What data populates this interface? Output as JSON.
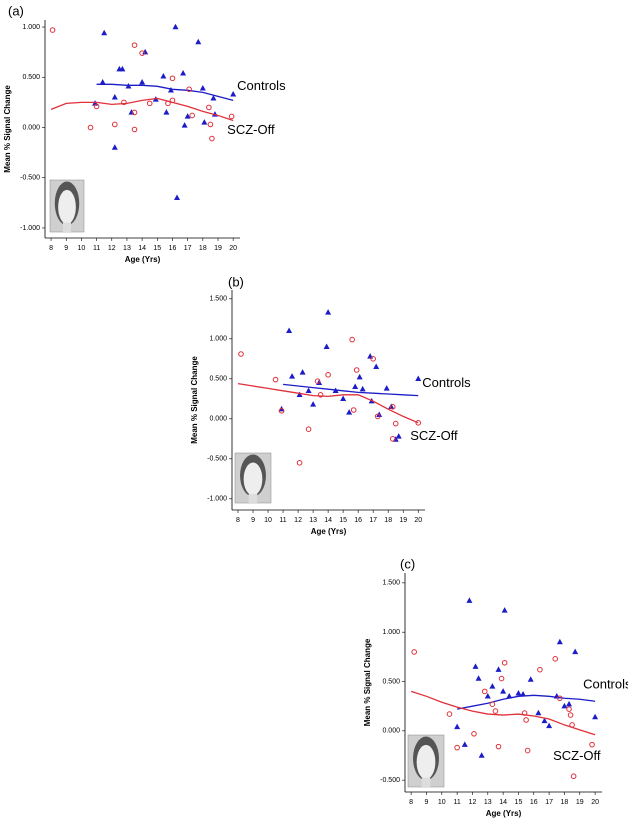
{
  "chart_data": [
    {
      "type": "scatter",
      "label": "(a)",
      "xlabel": "Age (Yrs)",
      "ylabel": "Mean % Signal Change",
      "xlim": [
        7.6,
        20.45
      ],
      "ylim": [
        -1.1,
        1.07
      ],
      "xticks": [
        8,
        9,
        10,
        11,
        12,
        13,
        14,
        15,
        16,
        17,
        18,
        19,
        20
      ],
      "yticks": [
        {
          "value": -1,
          "label": "-1.000"
        },
        {
          "value": -0.5,
          "label": "-0.500"
        },
        {
          "value": 0,
          "label": "0.000"
        },
        {
          "value": 0.5,
          "label": "0.500"
        },
        {
          "value": 1,
          "label": "1.000"
        }
      ],
      "series": [
        {
          "name": "Controls",
          "color": "#1c1cc8",
          "marker": "triangle",
          "x": [
            11.5,
            11.4,
            10.9,
            12.2,
            12.5,
            12.7,
            12.2,
            13.3,
            13.1,
            14.0,
            14.2,
            14.9,
            15.4,
            15.6,
            16.2,
            16.3,
            16.7,
            16.8,
            17.0,
            17.7,
            18.0,
            18.1,
            18.7,
            18.8,
            20.0,
            15.9
          ],
          "values": [
            0.94,
            0.45,
            0.24,
            0.3,
            0.58,
            0.58,
            -0.2,
            0.15,
            0.41,
            0.45,
            0.75,
            0.28,
            0.51,
            0.15,
            1.0,
            -0.7,
            0.54,
            0.02,
            0.11,
            0.85,
            0.39,
            0.05,
            0.29,
            0.13,
            0.33,
            0.37
          ],
          "fit_x": [
            11,
            12,
            13,
            14,
            15,
            16,
            17,
            18,
            19,
            20
          ],
          "fit_values": [
            0.43,
            0.43,
            0.42,
            0.42,
            0.41,
            0.38,
            0.37,
            0.35,
            0.31,
            0.27
          ]
        },
        {
          "name": "SCZ-Off",
          "color": "#e0303a",
          "marker": "circle",
          "x": [
            8.1,
            10.6,
            11.0,
            12.2,
            12.8,
            13.5,
            13.5,
            13.5,
            14.0,
            15.7,
            16.0,
            16.0,
            17.1,
            17.3,
            18.4,
            18.5,
            18.6,
            19.9,
            14.5
          ],
          "values": [
            0.97,
            0.0,
            0.21,
            0.03,
            0.25,
            0.15,
            -0.02,
            0.82,
            0.74,
            0.24,
            0.49,
            0.27,
            0.38,
            0.12,
            0.2,
            0.03,
            -0.11,
            0.11,
            0.24
          ],
          "fit_x": [
            8,
            9,
            10,
            11,
            12,
            13,
            14,
            15,
            16,
            17,
            18,
            19,
            20
          ],
          "fit_values": [
            0.18,
            0.24,
            0.25,
            0.25,
            0.23,
            0.24,
            0.27,
            0.29,
            0.25,
            0.21,
            0.16,
            0.12,
            0.07
          ]
        }
      ]
    },
    {
      "type": "scatter",
      "label": "(b)",
      "xlabel": "Age (Yrs)",
      "ylabel": "Mean % Signal Change",
      "xlim": [
        7.6,
        20.45
      ],
      "ylim": [
        -1.14,
        1.61
      ],
      "xticks": [
        8,
        9,
        10,
        11,
        12,
        13,
        14,
        15,
        16,
        17,
        18,
        19,
        20
      ],
      "yticks": [
        {
          "value": -1,
          "label": "-1.000"
        },
        {
          "value": -0.5,
          "label": "-0.500"
        },
        {
          "value": 0,
          "label": "0.000"
        },
        {
          "value": 0.5,
          "label": "0.500"
        },
        {
          "value": 1,
          "label": "1.000"
        },
        {
          "value": 1.5,
          "label": "1.500"
        }
      ],
      "series": [
        {
          "name": "Controls",
          "color": "#1c1cc8",
          "marker": "triangle",
          "x": [
            10.9,
            11.4,
            11.6,
            12.1,
            12.3,
            12.7,
            13.0,
            13.4,
            13.9,
            14.0,
            14.5,
            15.0,
            15.4,
            15.8,
            16.1,
            16.3,
            16.8,
            16.9,
            17.2,
            17.4,
            17.9,
            18.2,
            18.5,
            18.7,
            20.0
          ],
          "values": [
            0.12,
            1.1,
            0.53,
            0.3,
            0.58,
            0.35,
            0.18,
            0.45,
            0.9,
            1.33,
            0.35,
            0.25,
            0.08,
            0.4,
            0.52,
            0.37,
            0.78,
            0.22,
            0.65,
            0.05,
            0.38,
            0.15,
            -0.26,
            -0.22,
            0.5
          ],
          "fit_x": [
            11,
            12,
            13,
            14,
            15,
            16,
            17,
            18,
            19,
            20
          ],
          "fit_values": [
            0.43,
            0.41,
            0.39,
            0.37,
            0.35,
            0.33,
            0.32,
            0.31,
            0.3,
            0.29
          ]
        },
        {
          "name": "SCZ-Off",
          "color": "#e0303a",
          "marker": "circle",
          "x": [
            8.2,
            10.5,
            10.9,
            12.1,
            12.7,
            13.3,
            13.5,
            14.0,
            15.6,
            15.7,
            15.9,
            17.0,
            17.3,
            18.3,
            18.5,
            18.3,
            20.0
          ],
          "values": [
            0.81,
            0.49,
            0.1,
            -0.55,
            -0.13,
            0.47,
            0.3,
            0.55,
            0.99,
            0.11,
            0.61,
            0.75,
            0.03,
            0.15,
            -0.06,
            -0.25,
            -0.05
          ],
          "fit_x": [
            8,
            9,
            10,
            11,
            12,
            13,
            14,
            15,
            16,
            17,
            18,
            19,
            20
          ],
          "fit_values": [
            0.44,
            0.41,
            0.38,
            0.35,
            0.32,
            0.29,
            0.28,
            0.3,
            0.3,
            0.22,
            0.12,
            0.03,
            -0.05
          ]
        }
      ]
    },
    {
      "type": "scatter",
      "label": "(c)",
      "xlabel": "Age (Yrs)",
      "ylabel": "Mean % Signal Change",
      "xlim": [
        7.6,
        20.45
      ],
      "ylim": [
        -0.62,
        1.6
      ],
      "xticks": [
        8,
        9,
        10,
        11,
        12,
        13,
        14,
        15,
        16,
        17,
        18,
        19,
        20
      ],
      "yticks": [
        {
          "value": -0.5,
          "label": "-0.500"
        },
        {
          "value": 0,
          "label": "0.000"
        },
        {
          "value": 0.5,
          "label": "0.500"
        },
        {
          "value": 1,
          "label": "1.000"
        },
        {
          "value": 1.5,
          "label": "1.500"
        }
      ],
      "series": [
        {
          "name": "Controls",
          "color": "#1c1cc8",
          "marker": "triangle",
          "x": [
            11.0,
            11.5,
            11.8,
            12.2,
            12.4,
            12.6,
            13.0,
            13.3,
            13.7,
            14.0,
            14.1,
            14.4,
            15.0,
            15.3,
            15.8,
            16.3,
            16.7,
            17.0,
            17.5,
            17.7,
            18.0,
            18.3,
            18.7,
            20.0
          ],
          "values": [
            0.04,
            -0.14,
            1.32,
            0.65,
            0.53,
            -0.25,
            0.35,
            0.45,
            0.62,
            0.4,
            1.22,
            0.35,
            0.38,
            0.37,
            0.52,
            0.18,
            0.1,
            0.05,
            0.35,
            0.9,
            0.25,
            0.27,
            0.8,
            0.14
          ],
          "fit_x": [
            11,
            12,
            13,
            14,
            15,
            16,
            17,
            18,
            19,
            20
          ],
          "fit_values": [
            0.22,
            0.25,
            0.28,
            0.32,
            0.35,
            0.36,
            0.35,
            0.33,
            0.32,
            0.3
          ]
        },
        {
          "name": "SCZ-Off",
          "color": "#e0303a",
          "marker": "circle",
          "x": [
            8.2,
            10.5,
            11.0,
            12.1,
            12.8,
            13.3,
            13.5,
            13.7,
            13.9,
            14.1,
            15.4,
            15.5,
            15.6,
            16.4,
            17.4,
            17.7,
            18.3,
            18.4,
            18.5,
            18.6,
            19.8
          ],
          "values": [
            0.8,
            0.17,
            -0.17,
            -0.03,
            0.4,
            0.27,
            0.2,
            -0.16,
            0.53,
            0.69,
            0.18,
            0.11,
            -0.2,
            0.62,
            0.73,
            0.33,
            0.22,
            0.16,
            0.06,
            -0.46,
            -0.14
          ],
          "fit_x": [
            8,
            9,
            10,
            11,
            12,
            13,
            14,
            15,
            16,
            17,
            18,
            19,
            20
          ],
          "fit_values": [
            0.4,
            0.35,
            0.29,
            0.24,
            0.2,
            0.17,
            0.16,
            0.17,
            0.15,
            0.12,
            0.06,
            0.01,
            -0.04
          ]
        }
      ]
    }
  ]
}
